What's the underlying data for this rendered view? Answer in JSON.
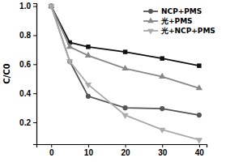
{
  "chart_data": {
    "type": "line",
    "y_label": "C/C0",
    "x": [
      0,
      5,
      10,
      20,
      30,
      40
    ],
    "series": [
      {
        "color": "#111111",
        "marker": "square",
        "values": [
          1.0,
          0.75,
          0.72,
          0.685,
          0.64,
          0.59
        ]
      },
      {
        "name": "NCP+PMS",
        "color": "#555555",
        "marker": "circle",
        "values": [
          1.0,
          0.62,
          0.38,
          0.3,
          0.295,
          0.25
        ]
      },
      {
        "name": "光+PMS",
        "color": "#888888",
        "marker": "triangle-up",
        "values": [
          1.0,
          0.72,
          0.66,
          0.57,
          0.515,
          0.435
        ]
      },
      {
        "name": "光+NCP+PMS",
        "color": "#aaaaaa",
        "marker": "triangle-down",
        "values": [
          1.0,
          0.62,
          0.46,
          0.25,
          0.15,
          0.08
        ]
      }
    ],
    "xlim": [
      -4,
      42
    ],
    "xticks": [
      0,
      10,
      20,
      30,
      40
    ],
    "ylim": [
      0.05,
      1.02
    ],
    "yticks": [
      0.2,
      0.4,
      0.6,
      0.8,
      {
        "value": 1.0,
        "label": "1.0"
      }
    ],
    "legend": "upper right",
    "grid": false
  }
}
